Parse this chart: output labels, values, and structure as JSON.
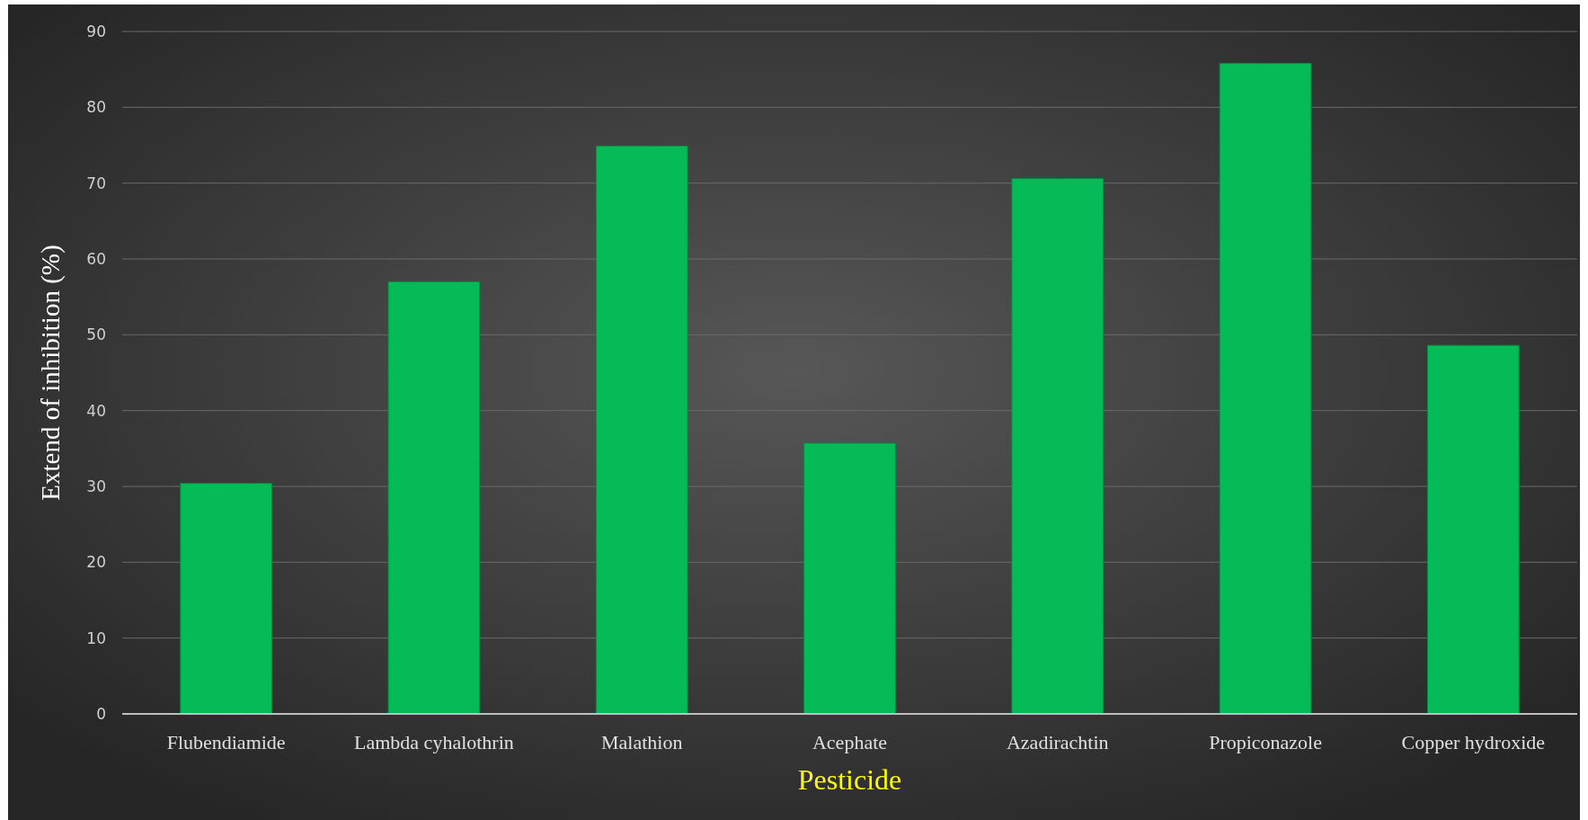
{
  "chart_data": {
    "type": "bar",
    "xlabel": "Pesticide",
    "ylabel": "Extend of inhibition (%)",
    "categories": [
      "Flubendiamide",
      "Lambda cyhalothrin",
      "Malathion",
      "Acephate",
      "Azadirachtin",
      "Propiconazole",
      "Copper hydroxide"
    ],
    "values": [
      30.4,
      57.0,
      74.9,
      35.7,
      70.6,
      85.8,
      48.6
    ],
    "color": "#05bb58",
    "ylim": [
      0,
      90
    ],
    "yticks": [
      0,
      10,
      20,
      30,
      40,
      50,
      60,
      70,
      80,
      90
    ],
    "grid": "y"
  }
}
